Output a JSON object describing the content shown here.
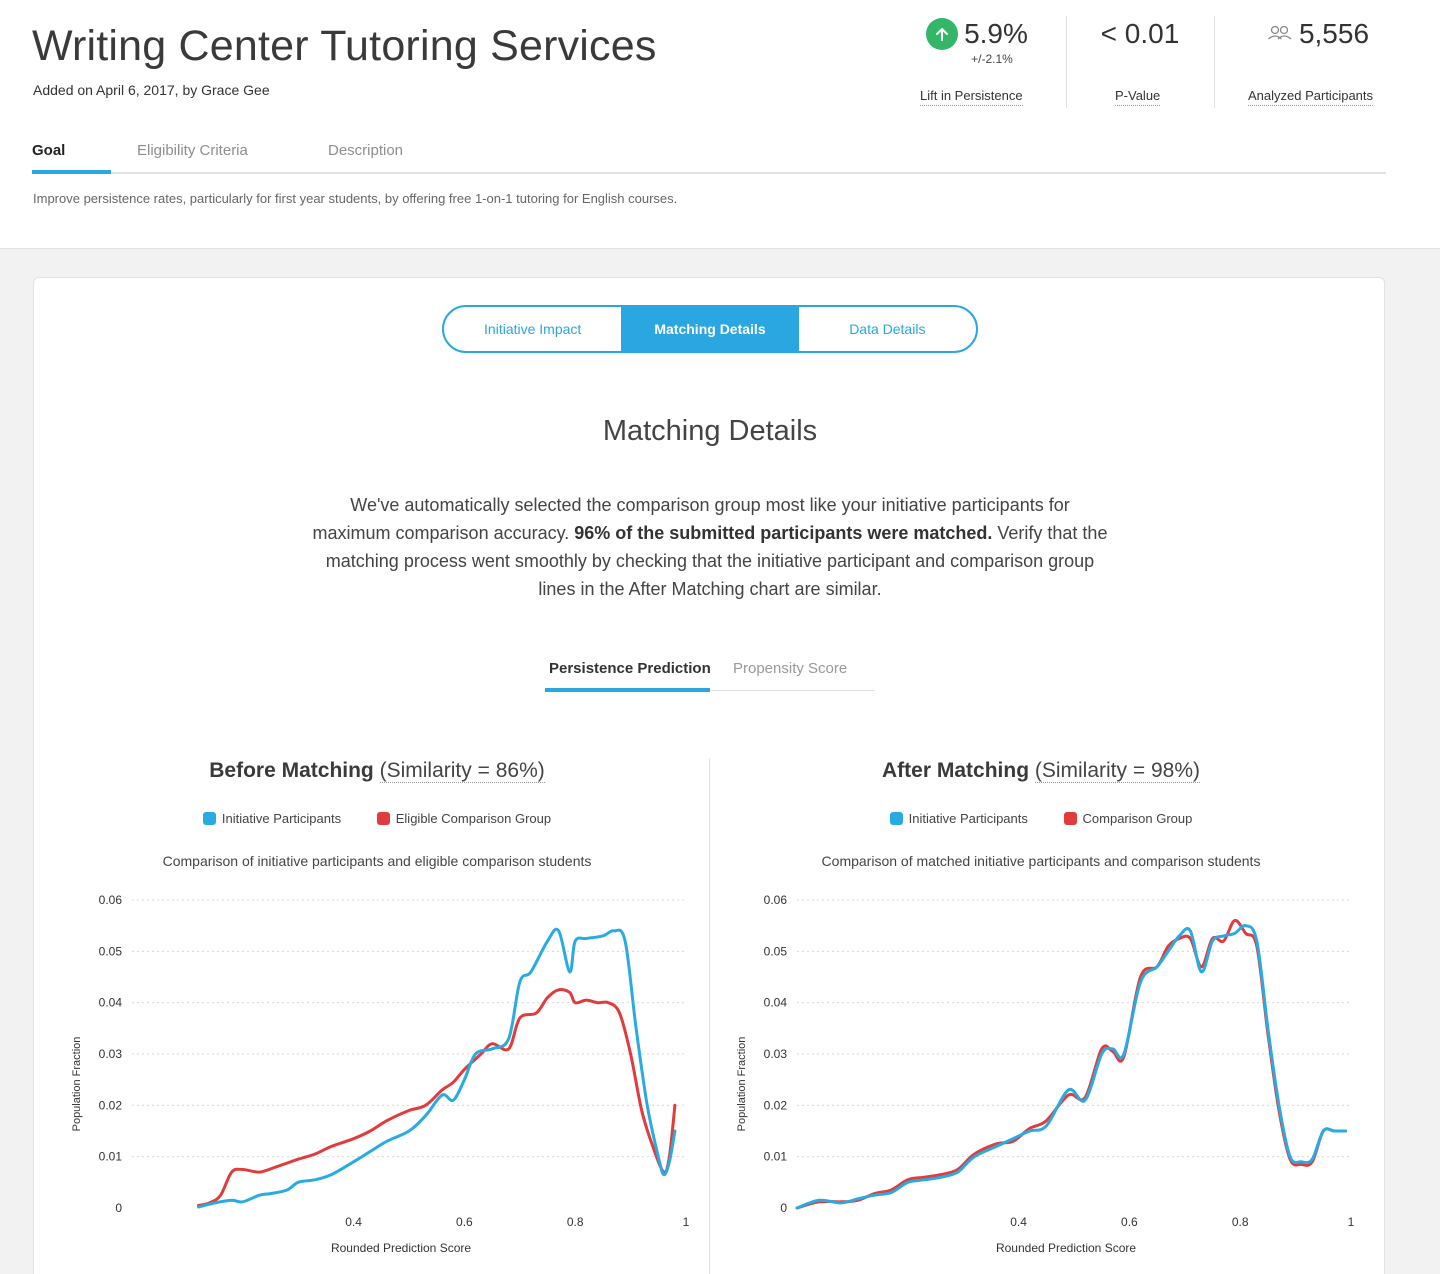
{
  "header": {
    "title": "Writing Center Tutoring Services",
    "added": "Added on April 6, 2017, by Grace Gee"
  },
  "stats": {
    "lift": {
      "value": "5.9%",
      "margin": "+/-2.1%",
      "label": "Lift in Persistence",
      "icon": "arrow-up-icon"
    },
    "pvalue": {
      "value": "< 0.01",
      "label": "P-Value"
    },
    "participants": {
      "value": "5,556",
      "label": "Analyzed Participants",
      "icon": "people-icon"
    }
  },
  "tabs": {
    "goal": "Goal",
    "eligibility": "Eligibility Criteria",
    "description": "Description"
  },
  "goal_text": "Improve persistence rates, particularly for first year students, by offering free 1-on-1 tutoring for English courses.",
  "segments": {
    "impact": "Initiative Impact",
    "matching": "Matching Details",
    "data": "Data Details"
  },
  "section": {
    "title": "Matching Details",
    "intro_pre": "We've automatically selected the comparison group most like your initiative participants for maximum comparison accuracy. ",
    "intro_bold": "96% of the submitted participants were matched.",
    "intro_post": " Verify that the matching process went smoothly by checking that the initiative participant and comparison group lines in the After Matching chart are similar."
  },
  "subtabs": {
    "persistence": "Persistence Prediction",
    "propensity": "Propensity Score"
  },
  "colors": {
    "accent": "#2aa7e0",
    "initiative": "#29abe2",
    "comparison": "#e23b3b",
    "green": "#33b667"
  },
  "chart_data": [
    {
      "type": "line",
      "title_bold": "Before Matching",
      "title_rest": "(Similarity = 86%)",
      "subtitle": "Comparison of initiative participants and eligible comparison students",
      "xlabel": "Rounded Prediction Score",
      "ylabel": "Population Fraction",
      "xlim": [
        0,
        1
      ],
      "ylim": [
        0,
        0.06
      ],
      "xticks": [
        "0.4",
        "0.6",
        "0.8",
        "1"
      ],
      "xtick_values": [
        0.4,
        0.6,
        0.8,
        1.0
      ],
      "yticks": [
        "0",
        "0.01",
        "0.02",
        "0.03",
        "0.04",
        "0.05",
        "0.06"
      ],
      "ytick_values": [
        0,
        0.01,
        0.02,
        0.03,
        0.04,
        0.05,
        0.06
      ],
      "legend": [
        "Initiative Participants",
        "Eligible Comparison Group"
      ],
      "series": [
        {
          "name": "Initiative Participants",
          "x": [
            0.12,
            0.15,
            0.18,
            0.2,
            0.23,
            0.25,
            0.28,
            0.3,
            0.33,
            0.36,
            0.4,
            0.43,
            0.46,
            0.5,
            0.53,
            0.56,
            0.58,
            0.6,
            0.62,
            0.65,
            0.68,
            0.7,
            0.72,
            0.75,
            0.77,
            0.79,
            0.8,
            0.82,
            0.85,
            0.87,
            0.89,
            0.91,
            0.93,
            0.95,
            0.96,
            0.97,
            0.98
          ],
          "y": [
            0.0002,
            0.001,
            0.0015,
            0.0012,
            0.0025,
            0.0028,
            0.0035,
            0.005,
            0.0055,
            0.0065,
            0.009,
            0.011,
            0.013,
            0.015,
            0.018,
            0.022,
            0.021,
            0.025,
            0.03,
            0.031,
            0.033,
            0.044,
            0.046,
            0.052,
            0.054,
            0.046,
            0.052,
            0.0525,
            0.053,
            0.054,
            0.052,
            0.035,
            0.02,
            0.01,
            0.0065,
            0.009,
            0.015
          ]
        },
        {
          "name": "Eligible Comparison Group",
          "x": [
            0.12,
            0.14,
            0.16,
            0.18,
            0.2,
            0.23,
            0.26,
            0.3,
            0.33,
            0.36,
            0.4,
            0.43,
            0.46,
            0.5,
            0.53,
            0.56,
            0.58,
            0.6,
            0.63,
            0.65,
            0.68,
            0.7,
            0.73,
            0.75,
            0.77,
            0.79,
            0.8,
            0.82,
            0.84,
            0.86,
            0.88,
            0.9,
            0.92,
            0.94,
            0.96,
            0.97,
            0.98
          ],
          "y": [
            0.0005,
            0.001,
            0.0025,
            0.007,
            0.0075,
            0.007,
            0.008,
            0.0095,
            0.0105,
            0.012,
            0.0135,
            0.015,
            0.017,
            0.019,
            0.02,
            0.023,
            0.0245,
            0.027,
            0.03,
            0.032,
            0.031,
            0.037,
            0.038,
            0.041,
            0.0425,
            0.042,
            0.04,
            0.0405,
            0.04,
            0.04,
            0.038,
            0.03,
            0.019,
            0.012,
            0.007,
            0.01,
            0.02
          ]
        }
      ]
    },
    {
      "type": "line",
      "title_bold": "After Matching",
      "title_rest": "(Similarity = 98%)",
      "subtitle": "Comparison of matched initiative participants and comparison students",
      "xlabel": "Rounded Prediction Score",
      "ylabel": "Population Fraction",
      "xlim": [
        0,
        1
      ],
      "ylim": [
        0,
        0.06
      ],
      "xticks": [
        "0.4",
        "0.6",
        "0.8",
        "1"
      ],
      "xtick_values": [
        0.4,
        0.6,
        0.8,
        1.0
      ],
      "yticks": [
        "0",
        "0.01",
        "0.02",
        "0.03",
        "0.04",
        "0.05",
        "0.06"
      ],
      "ytick_values": [
        0,
        0.01,
        0.02,
        0.03,
        0.04,
        0.05,
        0.06
      ],
      "legend": [
        "Initiative Participants",
        "Comparison Group"
      ],
      "series": [
        {
          "name": "Initiative Participants",
          "x": [
            0.0,
            0.04,
            0.08,
            0.11,
            0.14,
            0.17,
            0.2,
            0.23,
            0.26,
            0.29,
            0.32,
            0.36,
            0.39,
            0.42,
            0.45,
            0.49,
            0.52,
            0.55,
            0.57,
            0.59,
            0.62,
            0.65,
            0.67,
            0.69,
            0.71,
            0.73,
            0.75,
            0.77,
            0.79,
            0.81,
            0.83,
            0.85,
            0.87,
            0.89,
            0.91,
            0.93,
            0.95,
            0.97,
            0.99
          ],
          "y": [
            0.0,
            0.0015,
            0.001,
            0.0018,
            0.0025,
            0.003,
            0.005,
            0.0055,
            0.006,
            0.007,
            0.01,
            0.012,
            0.0135,
            0.015,
            0.016,
            0.023,
            0.021,
            0.03,
            0.031,
            0.03,
            0.044,
            0.047,
            0.05,
            0.053,
            0.054,
            0.046,
            0.052,
            0.053,
            0.0535,
            0.055,
            0.052,
            0.035,
            0.02,
            0.01,
            0.009,
            0.0095,
            0.015,
            0.015,
            0.015
          ]
        },
        {
          "name": "Comparison Group",
          "x": [
            0.0,
            0.04,
            0.08,
            0.11,
            0.14,
            0.17,
            0.2,
            0.23,
            0.26,
            0.29,
            0.32,
            0.36,
            0.39,
            0.42,
            0.45,
            0.49,
            0.52,
            0.55,
            0.57,
            0.59,
            0.62,
            0.65,
            0.67,
            0.69,
            0.71,
            0.73,
            0.75,
            0.77,
            0.79,
            0.81,
            0.83,
            0.85,
            0.87,
            0.89,
            0.91,
            0.93,
            0.95,
            0.97,
            0.99
          ],
          "y": [
            0.0,
            0.0012,
            0.0012,
            0.0015,
            0.0028,
            0.0035,
            0.0055,
            0.006,
            0.0065,
            0.0075,
            0.0105,
            0.0125,
            0.013,
            0.0155,
            0.017,
            0.022,
            0.0215,
            0.031,
            0.0305,
            0.0295,
            0.045,
            0.047,
            0.051,
            0.0525,
            0.0525,
            0.047,
            0.0525,
            0.052,
            0.056,
            0.0535,
            0.051,
            0.034,
            0.019,
            0.0095,
            0.0085,
            0.009,
            0.015,
            0.015,
            0.015
          ]
        }
      ]
    }
  ]
}
